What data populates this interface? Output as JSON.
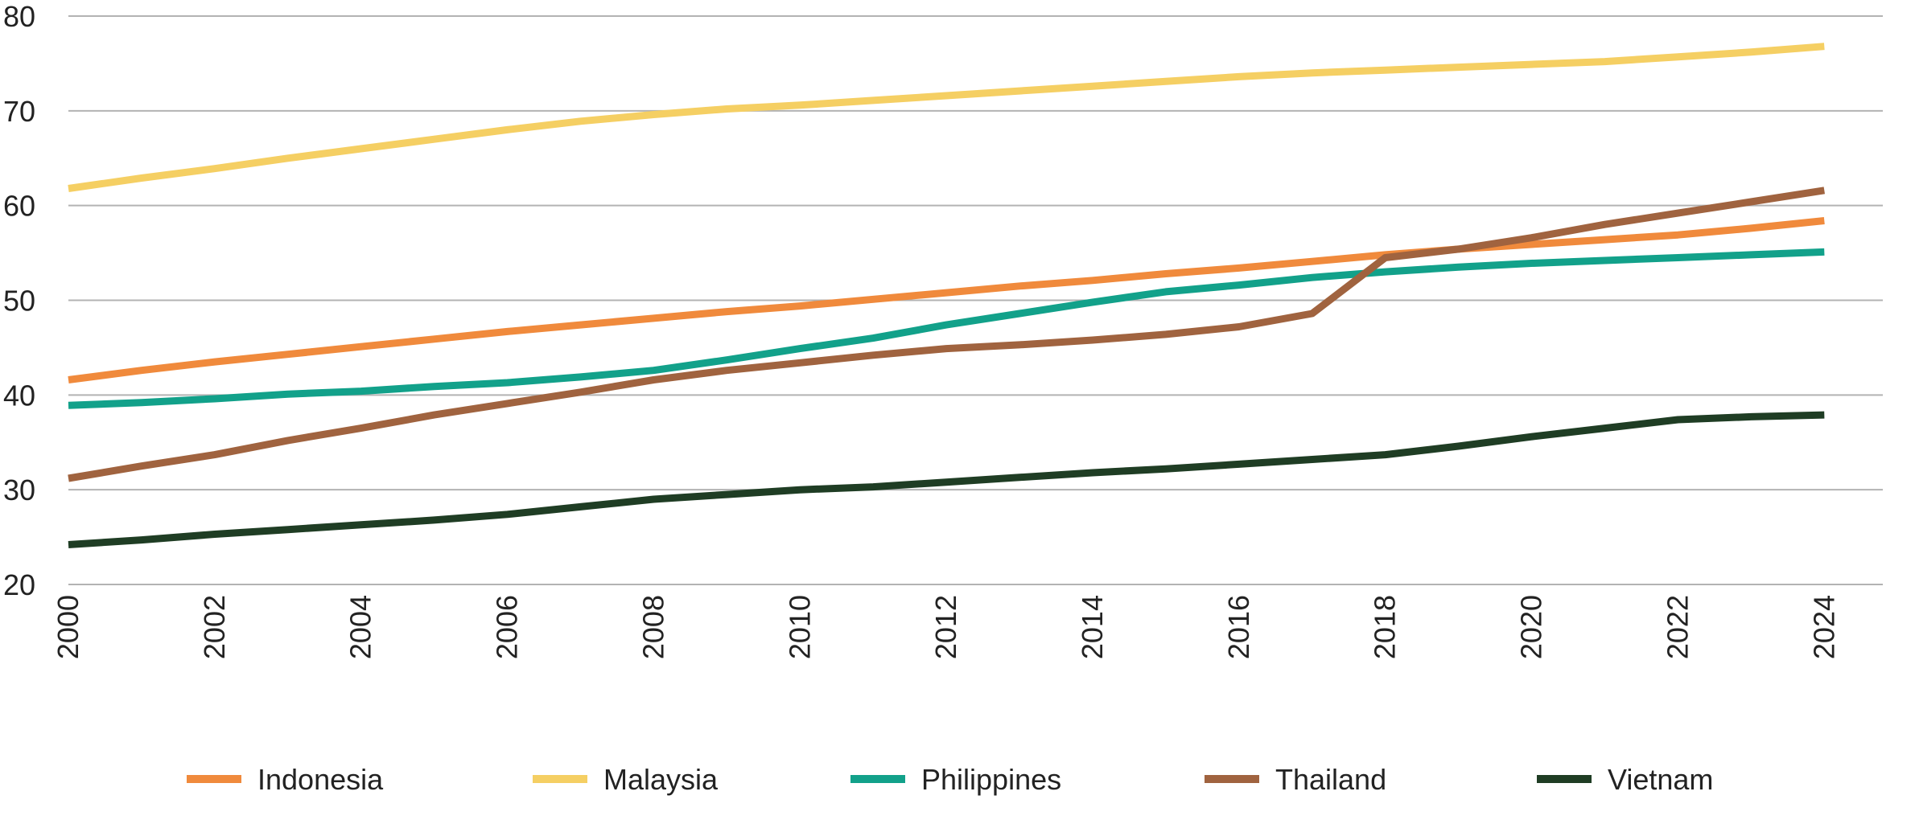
{
  "chart_data": {
    "type": "line",
    "title": "",
    "xlabel": "",
    "ylabel": "",
    "x": [
      2000,
      2001,
      2002,
      2003,
      2004,
      2005,
      2006,
      2007,
      2008,
      2009,
      2010,
      2011,
      2012,
      2013,
      2014,
      2015,
      2016,
      2017,
      2018,
      2019,
      2020,
      2021,
      2022,
      2023,
      2024
    ],
    "xlim": [
      2000,
      2024.8
    ],
    "ylim": [
      20,
      80
    ],
    "yticks": [
      20,
      30,
      40,
      50,
      60,
      70,
      80
    ],
    "xticks": [
      2000,
      2002,
      2004,
      2006,
      2008,
      2010,
      2012,
      2014,
      2016,
      2018,
      2020,
      2022,
      2024
    ],
    "grid": true,
    "legend_position": "bottom",
    "series": [
      {
        "name": "Indonesia",
        "color": "#f08a3c",
        "values": [
          41.6,
          42.6,
          43.5,
          44.3,
          45.1,
          45.9,
          46.7,
          47.4,
          48.1,
          48.8,
          49.4,
          50.1,
          50.8,
          51.5,
          52.1,
          52.8,
          53.4,
          54.1,
          54.8,
          55.4,
          55.9,
          56.4,
          56.9,
          57.6,
          58.4
        ]
      },
      {
        "name": "Malaysia",
        "color": "#f5cf63",
        "values": [
          61.8,
          62.9,
          63.9,
          65.0,
          66.0,
          67.0,
          68.0,
          68.9,
          69.6,
          70.2,
          70.6,
          71.1,
          71.6,
          72.1,
          72.6,
          73.1,
          73.6,
          74.0,
          74.3,
          74.6,
          74.9,
          75.2,
          75.7,
          76.2,
          76.8
        ]
      },
      {
        "name": "Philippines",
        "color": "#12a18a",
        "values": [
          38.9,
          39.2,
          39.6,
          40.1,
          40.4,
          40.9,
          41.3,
          41.9,
          42.6,
          43.7,
          44.9,
          46.0,
          47.4,
          48.6,
          49.8,
          50.9,
          51.6,
          52.4,
          53.0,
          53.5,
          53.9,
          54.2,
          54.5,
          54.8,
          55.1
        ]
      },
      {
        "name": "Thailand",
        "color": "#a0633f",
        "values": [
          31.2,
          32.5,
          33.7,
          35.2,
          36.5,
          37.9,
          39.1,
          40.3,
          41.6,
          42.6,
          43.4,
          44.2,
          44.9,
          45.3,
          45.8,
          46.4,
          47.2,
          48.6,
          54.5,
          55.4,
          56.6,
          58.0,
          59.2,
          60.4,
          61.6
        ]
      },
      {
        "name": "Vietnam",
        "color": "#1f3d24",
        "values": [
          24.2,
          24.7,
          25.3,
          25.8,
          26.3,
          26.8,
          27.4,
          28.2,
          29.0,
          29.5,
          30.0,
          30.3,
          30.8,
          31.3,
          31.8,
          32.2,
          32.7,
          33.2,
          33.7,
          34.6,
          35.6,
          36.5,
          37.4,
          37.7,
          37.9
        ]
      }
    ]
  }
}
